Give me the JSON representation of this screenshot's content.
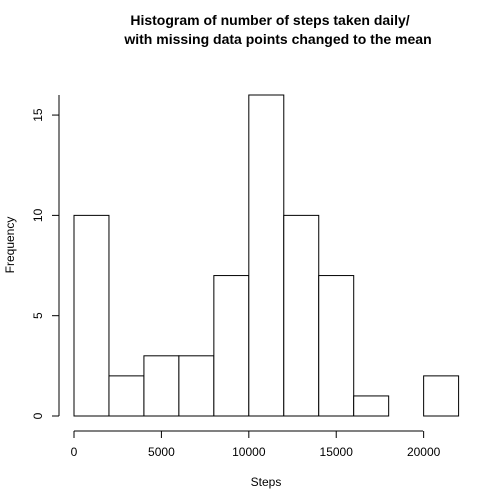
{
  "chart_data": {
    "type": "bar",
    "title_lines": [
      "Histogram of number of steps taken daily/",
      "with missing data points changed to the mean"
    ],
    "xlabel": "Steps",
    "ylabel": "Frequency",
    "bins": [
      {
        "from": 0,
        "to": 2000,
        "count": 10
      },
      {
        "from": 2000,
        "to": 4000,
        "count": 2
      },
      {
        "from": 4000,
        "to": 6000,
        "count": 3
      },
      {
        "from": 6000,
        "to": 8000,
        "count": 3
      },
      {
        "from": 8000,
        "to": 10000,
        "count": 7
      },
      {
        "from": 10000,
        "to": 12000,
        "count": 16
      },
      {
        "from": 12000,
        "to": 14000,
        "count": 10
      },
      {
        "from": 14000,
        "to": 16000,
        "count": 7
      },
      {
        "from": 16000,
        "to": 18000,
        "count": 1
      },
      {
        "from": 18000,
        "to": 20000,
        "count": 0
      },
      {
        "from": 20000,
        "to": 22000,
        "count": 2
      }
    ],
    "xlim": [
      0,
      22000
    ],
    "ylim": [
      0,
      16
    ],
    "x_ticks": [
      0,
      5000,
      10000,
      15000,
      20000
    ],
    "y_ticks": [
      0,
      5,
      10,
      15
    ],
    "grid": false
  }
}
